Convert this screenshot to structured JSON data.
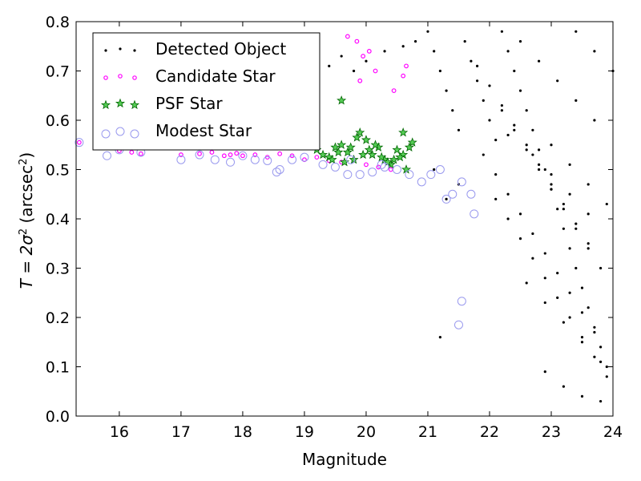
{
  "chart_data": {
    "type": "scatter",
    "xlabel": "Magnitude",
    "ylabel_parts": {
      "prefix": "T = 2σ",
      "sup1": "2",
      "mid": " (arcsec",
      "sup2": "2",
      "suffix": ")"
    },
    "xlim": [
      15.3,
      24.0
    ],
    "ylim": [
      0.0,
      0.8
    ],
    "xticks": [
      16,
      17,
      18,
      19,
      20,
      21,
      22,
      23,
      24
    ],
    "yticks": [
      0.0,
      0.1,
      0.2,
      0.3,
      0.4,
      0.5,
      0.6,
      0.7,
      0.8
    ],
    "grid": false,
    "legend_position": "top-left",
    "series": [
      {
        "name": "Detected Object",
        "marker": "dot",
        "color": "#000000",
        "x": [
          21.0,
          21.1,
          21.2,
          21.3,
          21.4,
          21.5,
          21.6,
          21.7,
          21.8,
          21.9,
          22.0,
          22.1,
          22.2,
          22.3,
          22.4,
          22.5,
          22.6,
          22.7,
          22.8,
          22.9,
          23.0,
          23.1,
          23.2,
          23.3,
          23.4,
          23.5,
          23.6,
          23.7,
          23.8,
          23.9,
          21.9,
          22.1,
          22.3,
          22.5,
          22.7,
          22.9,
          23.1,
          23.3,
          23.5,
          23.7,
          21.8,
          22.0,
          22.2,
          22.4,
          22.6,
          22.8,
          23.0,
          23.2,
          23.4,
          23.6,
          22.1,
          22.3,
          22.5,
          22.7,
          22.9,
          23.1,
          23.3,
          23.5,
          23.7,
          23.9,
          22.2,
          22.4,
          22.6,
          22.8,
          23.0,
          23.2,
          23.4,
          23.6,
          23.8,
          22.5,
          22.8,
          23.1,
          23.4,
          23.7,
          22.6,
          22.9,
          23.2,
          23.5,
          23.8,
          22.3,
          22.7,
          23.0,
          23.3,
          23.6,
          22.9,
          23.2,
          23.5,
          23.8,
          23.0,
          23.3,
          23.6,
          23.9,
          23.4,
          23.7,
          24.0,
          20.8,
          20.6,
          20.3,
          20.0,
          19.8,
          19.6,
          19.4,
          21.2,
          21.5,
          21.3,
          21.1
        ],
        "y": [
          0.78,
          0.74,
          0.7,
          0.66,
          0.62,
          0.58,
          0.76,
          0.72,
          0.68,
          0.64,
          0.6,
          0.56,
          0.78,
          0.74,
          0.7,
          0.66,
          0.62,
          0.58,
          0.54,
          0.5,
          0.46,
          0.42,
          0.38,
          0.34,
          0.3,
          0.26,
          0.22,
          0.18,
          0.14,
          0.1,
          0.53,
          0.49,
          0.45,
          0.41,
          0.37,
          0.33,
          0.29,
          0.25,
          0.21,
          0.17,
          0.71,
          0.67,
          0.63,
          0.59,
          0.55,
          0.51,
          0.47,
          0.43,
          0.39,
          0.35,
          0.44,
          0.4,
          0.36,
          0.32,
          0.28,
          0.24,
          0.2,
          0.16,
          0.12,
          0.08,
          0.62,
          0.58,
          0.54,
          0.5,
          0.46,
          0.42,
          0.38,
          0.34,
          0.3,
          0.76,
          0.72,
          0.68,
          0.64,
          0.6,
          0.27,
          0.23,
          0.19,
          0.15,
          0.11,
          0.57,
          0.53,
          0.49,
          0.45,
          0.41,
          0.09,
          0.06,
          0.04,
          0.03,
          0.55,
          0.51,
          0.47,
          0.43,
          0.78,
          0.74,
          0.7,
          0.76,
          0.75,
          0.74,
          0.72,
          0.7,
          0.73,
          0.71,
          0.16,
          0.47,
          0.44,
          0.5
        ]
      },
      {
        "name": "Candidate Star",
        "marker": "open-circle-small",
        "color": "#ff00ff",
        "x": [
          15.35,
          15.9,
          16.0,
          16.2,
          16.35,
          17.0,
          17.3,
          17.5,
          17.7,
          17.8,
          17.9,
          18.0,
          18.2,
          18.4,
          18.6,
          18.8,
          19.0,
          19.2,
          19.4,
          19.6,
          19.8,
          20.0,
          20.2,
          20.4,
          19.7,
          19.85,
          19.95,
          20.05,
          20.15,
          20.45,
          20.6,
          20.65,
          19.9
        ],
        "y": [
          0.555,
          0.545,
          0.538,
          0.535,
          0.532,
          0.53,
          0.532,
          0.535,
          0.528,
          0.53,
          0.533,
          0.528,
          0.53,
          0.525,
          0.532,
          0.528,
          0.52,
          0.525,
          0.518,
          0.515,
          0.52,
          0.51,
          0.505,
          0.5,
          0.77,
          0.76,
          0.73,
          0.74,
          0.7,
          0.66,
          0.69,
          0.71,
          0.68
        ]
      },
      {
        "name": "PSF Star",
        "marker": "star",
        "color": "#00aa00",
        "x": [
          19.2,
          19.3,
          19.4,
          19.5,
          19.6,
          19.7,
          19.8,
          19.9,
          20.0,
          20.1,
          20.2,
          20.3,
          20.4,
          20.5,
          20.6,
          20.7,
          20.75,
          19.45,
          19.65,
          19.85,
          20.05,
          20.25,
          20.45,
          20.65,
          19.55,
          19.75,
          19.95,
          20.15,
          20.35,
          20.55,
          19.6,
          20.6
        ],
        "y": [
          0.54,
          0.53,
          0.525,
          0.545,
          0.55,
          0.535,
          0.52,
          0.575,
          0.56,
          0.53,
          0.545,
          0.52,
          0.51,
          0.54,
          0.53,
          0.545,
          0.555,
          0.52,
          0.515,
          0.565,
          0.54,
          0.525,
          0.52,
          0.5,
          0.535,
          0.545,
          0.53,
          0.55,
          0.515,
          0.525,
          0.64,
          0.575
        ]
      },
      {
        "name": "Modest Star",
        "marker": "open-circle-large",
        "color": "#9999ee",
        "x": [
          15.35,
          15.8,
          16.0,
          16.35,
          17.0,
          17.3,
          17.55,
          17.8,
          18.0,
          18.2,
          18.4,
          18.55,
          18.8,
          19.0,
          19.3,
          19.5,
          19.7,
          19.9,
          20.1,
          20.3,
          20.5,
          20.7,
          20.9,
          21.05,
          21.2,
          21.3,
          21.4,
          21.55,
          21.7,
          21.75,
          21.55,
          21.5,
          19.75,
          20.25,
          18.6
        ],
        "y": [
          0.555,
          0.528,
          0.54,
          0.535,
          0.52,
          0.53,
          0.52,
          0.515,
          0.528,
          0.52,
          0.518,
          0.495,
          0.52,
          0.525,
          0.51,
          0.505,
          0.49,
          0.49,
          0.495,
          0.505,
          0.5,
          0.49,
          0.475,
          0.49,
          0.5,
          0.44,
          0.45,
          0.475,
          0.45,
          0.41,
          0.233,
          0.185,
          0.52,
          0.51,
          0.5
        ]
      }
    ]
  }
}
